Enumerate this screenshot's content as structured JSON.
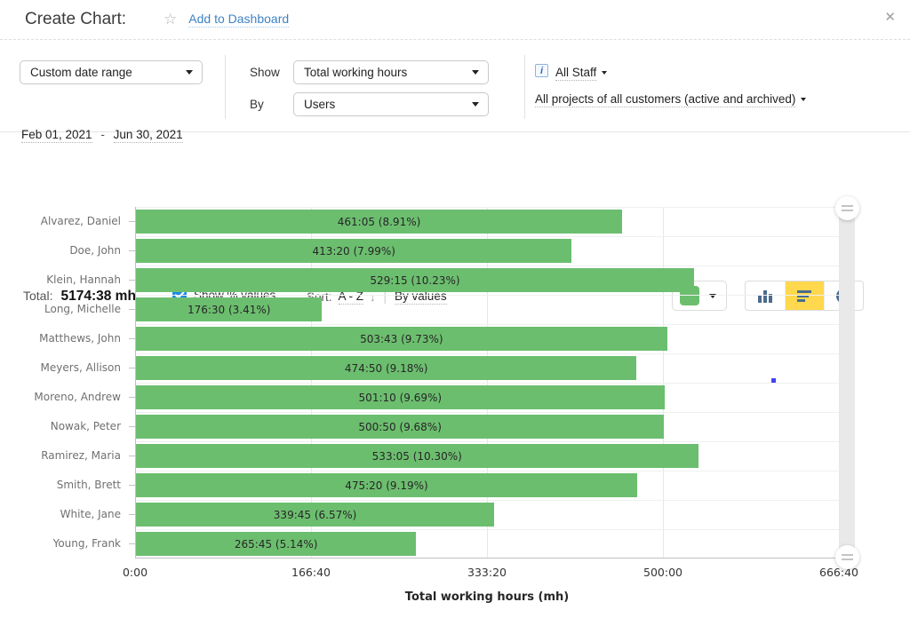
{
  "header": {
    "title": "Create Chart:",
    "star_icon": "☆",
    "add_to_dashboard": "Add to Dashboard",
    "close_icon": "✕"
  },
  "filters": {
    "date_range_select": "Custom date range",
    "date_from": "Feb 01, 2021",
    "date_separator": "-",
    "date_to": "Jun 30, 2021",
    "show_label": "Show",
    "show_select": "Total working hours",
    "by_label": "By",
    "by_select": "Users",
    "info_icon": "i",
    "staff_filter": "All Staff",
    "projects_filter": "All projects of all customers (active and archived)"
  },
  "controls": {
    "total_label": "Total:",
    "total_value": "5174:38 mh",
    "show_percent_label": "Show % values",
    "show_percent_checked": true,
    "sort_label": "Sort:",
    "sort_az_label": "A - Z",
    "sort_arrow": "↓",
    "sort_by_values_label": "By values",
    "chart_type_buttons": [
      "column",
      "bar",
      "pie"
    ],
    "selected_chart_type": "bar",
    "swatch_color": "#6cbe6f",
    "selected_button_color": "#ffd84d"
  },
  "chart_data": {
    "type": "bar",
    "orientation": "horizontal",
    "title": "",
    "xlabel": "Total working hours (mh)",
    "x_ticks": [
      "0:00",
      "166:40",
      "333:20",
      "500:00",
      "666:40"
    ],
    "xlim_hours": [
      0,
      666.667
    ],
    "grid": true,
    "bar_color": "#6cbe6f",
    "total": "5174:38 mh",
    "categories": [
      "Alvarez, Daniel",
      "Doe, John",
      "Klein, Hannah",
      "Long, Michelle",
      "Matthews, John",
      "Meyers, Allison",
      "Moreno, Andrew",
      "Nowak, Peter",
      "Ramirez, Maria",
      "Smith, Brett",
      "White, Jane",
      "Young, Frank"
    ],
    "values_mh": [
      "461:05",
      "413:20",
      "529:15",
      "176:30",
      "503:43",
      "474:50",
      "501:10",
      "500:50",
      "533:05",
      "475:20",
      "339:45",
      "265:45"
    ],
    "percents": [
      "8.91%",
      "7.99%",
      "10.23%",
      "3.41%",
      "9.73%",
      "9.18%",
      "9.69%",
      "9.68%",
      "10.30%",
      "9.19%",
      "6.57%",
      "5.14%"
    ],
    "values_hours": [
      461.083,
      413.333,
      529.25,
      176.5,
      503.717,
      474.833,
      501.167,
      500.833,
      533.083,
      475.333,
      339.75,
      265.75
    ]
  }
}
